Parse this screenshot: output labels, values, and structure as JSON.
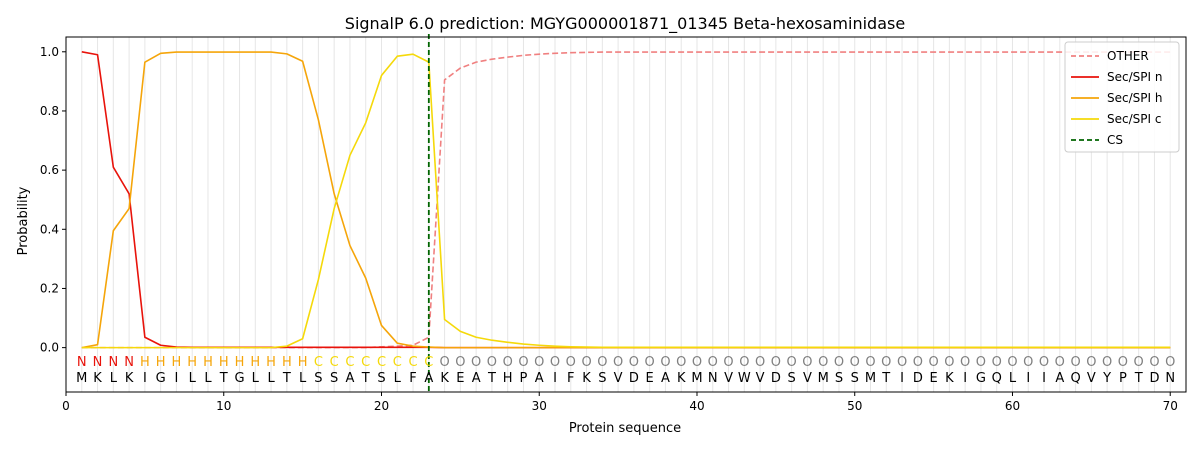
{
  "chart_data": {
    "type": "line",
    "title": "SignalP 6.0 prediction: MGYG000001871_01345 Beta-hexosaminidase",
    "xlabel": "Protein sequence",
    "ylabel": "Probability",
    "xlim": [
      0,
      71
    ],
    "ylim": [
      -0.15,
      1.05
    ],
    "x_ticks": [
      0,
      10,
      20,
      30,
      40,
      50,
      60,
      70
    ],
    "y_ticks": [
      0.0,
      0.2,
      0.4,
      0.6,
      0.8,
      1.0
    ],
    "x_tick_labels": [
      "0",
      "10",
      "20",
      "30",
      "40",
      "50",
      "60",
      "70"
    ],
    "y_tick_labels": [
      "0.0",
      "0.2",
      "0.4",
      "0.6",
      "0.8",
      "1.0"
    ],
    "grid": "vertical lines at each residue",
    "legend_position": "top-right",
    "sequence": [
      "M",
      "K",
      "L",
      "K",
      "I",
      "G",
      "I",
      "L",
      "L",
      "T",
      "G",
      "L",
      "L",
      "T",
      "L",
      "S",
      "S",
      "A",
      "T",
      "S",
      "L",
      "F",
      "A",
      "K",
      "E",
      "A",
      "T",
      "H",
      "P",
      "A",
      "I",
      "F",
      "K",
      "S",
      "V",
      "D",
      "E",
      "A",
      "K",
      "M",
      "N",
      "V",
      "W",
      "V",
      "D",
      "S",
      "V",
      "M",
      "S",
      "S",
      "M",
      "T",
      "I",
      "D",
      "E",
      "K",
      "I",
      "G",
      "Q",
      "L",
      "I",
      "I",
      "A",
      "Q",
      "V",
      "Y",
      "P",
      "T",
      "D",
      "N"
    ],
    "labels": [
      "N",
      "N",
      "N",
      "N",
      "H",
      "H",
      "H",
      "H",
      "H",
      "H",
      "H",
      "H",
      "H",
      "H",
      "H",
      "C",
      "C",
      "C",
      "C",
      "C",
      "C",
      "C",
      "C",
      "O",
      "O",
      "O",
      "O",
      "O",
      "O",
      "O",
      "O",
      "O",
      "O",
      "O",
      "O",
      "O",
      "O",
      "O",
      "O",
      "O",
      "O",
      "O",
      "O",
      "O",
      "O",
      "O",
      "O",
      "O",
      "O",
      "O",
      "O",
      "O",
      "O",
      "O",
      "O",
      "O",
      "O",
      "O",
      "O",
      "O",
      "O",
      "O",
      "O",
      "O",
      "O",
      "O",
      "O",
      "O",
      "O",
      "O"
    ],
    "label_colors": {
      "N": "#e8130b",
      "H": "#f5a50a",
      "C": "#f5d90a",
      "O": "#808080"
    },
    "cs_position": 23,
    "series": [
      {
        "name": "OTHER",
        "color": "#f08080",
        "dash": "dashed",
        "values": [
          0.0,
          0.0,
          0.0,
          0.0,
          0.0,
          0.0,
          0.0,
          0.0,
          0.0,
          0.0,
          0.0,
          0.0,
          0.0,
          0.0,
          0.0,
          0.0,
          0.0,
          0.0,
          0.0,
          0.003,
          0.005,
          0.008,
          0.035,
          0.905,
          0.945,
          0.965,
          0.975,
          0.982,
          0.988,
          0.992,
          0.995,
          0.997,
          0.998,
          0.999,
          0.999,
          0.999,
          0.999,
          0.999,
          0.999,
          0.999,
          0.999,
          0.999,
          0.999,
          0.999,
          0.999,
          0.999,
          0.999,
          0.999,
          0.999,
          0.999,
          0.999,
          0.999,
          0.999,
          0.999,
          0.999,
          0.999,
          0.999,
          0.999,
          0.999,
          0.999,
          0.999,
          0.999,
          0.999,
          0.999,
          0.999,
          0.999,
          0.999,
          0.999,
          0.999,
          0.999
        ]
      },
      {
        "name": "Sec/SPI n",
        "color": "#e8130b",
        "dash": "solid",
        "values": [
          1.0,
          0.99,
          0.61,
          0.52,
          0.035,
          0.008,
          0.002,
          0.001,
          0.001,
          0.001,
          0.001,
          0.001,
          0.001,
          0.001,
          0.001,
          0.001,
          0.001,
          0.001,
          0.001,
          0.001,
          0.001,
          0.001,
          0.001,
          0.0,
          0.0,
          0.0,
          0.0,
          0.0,
          0.0,
          0.0,
          0.0,
          0.0,
          0.0,
          0.0,
          0.0,
          0.0,
          0.0,
          0.0,
          0.0,
          0.0,
          0.0,
          0.0,
          0.0,
          0.0,
          0.0,
          0.0,
          0.0,
          0.0,
          0.0,
          0.0,
          0.0,
          0.0,
          0.0,
          0.0,
          0.0,
          0.0,
          0.0,
          0.0,
          0.0,
          0.0,
          0.0,
          0.0,
          0.0,
          0.0,
          0.0,
          0.0,
          0.0,
          0.0,
          0.0,
          0.0
        ]
      },
      {
        "name": "Sec/SPI h",
        "color": "#f5a50a",
        "dash": "solid",
        "values": [
          0.0,
          0.01,
          0.395,
          0.47,
          0.965,
          0.995,
          0.999,
          0.999,
          0.999,
          0.999,
          0.999,
          0.999,
          0.999,
          0.993,
          0.968,
          0.77,
          0.52,
          0.345,
          0.235,
          0.075,
          0.015,
          0.005,
          0.002,
          0.0,
          0.0,
          0.0,
          0.0,
          0.0,
          0.0,
          0.0,
          0.0,
          0.0,
          0.0,
          0.0,
          0.0,
          0.0,
          0.0,
          0.0,
          0.0,
          0.0,
          0.0,
          0.0,
          0.0,
          0.0,
          0.0,
          0.0,
          0.0,
          0.0,
          0.0,
          0.0,
          0.0,
          0.0,
          0.0,
          0.0,
          0.0,
          0.0,
          0.0,
          0.0,
          0.0,
          0.0,
          0.0,
          0.0,
          0.0,
          0.0,
          0.0,
          0.0,
          0.0,
          0.0,
          0.0,
          0.0
        ]
      },
      {
        "name": "Sec/SPI c",
        "color": "#f5d90a",
        "dash": "solid",
        "values": [
          0.0,
          0.0,
          0.0,
          0.0,
          0.0,
          0.0,
          0.0,
          0.0,
          0.0,
          0.0,
          0.0,
          0.0,
          0.0,
          0.005,
          0.03,
          0.23,
          0.47,
          0.65,
          0.76,
          0.92,
          0.985,
          0.992,
          0.965,
          0.095,
          0.055,
          0.035,
          0.025,
          0.018,
          0.012,
          0.008,
          0.005,
          0.003,
          0.002,
          0.001,
          0.001,
          0.001,
          0.001,
          0.001,
          0.001,
          0.001,
          0.001,
          0.001,
          0.001,
          0.001,
          0.001,
          0.001,
          0.001,
          0.001,
          0.001,
          0.001,
          0.001,
          0.001,
          0.001,
          0.001,
          0.001,
          0.001,
          0.001,
          0.001,
          0.001,
          0.001,
          0.001,
          0.001,
          0.001,
          0.001,
          0.001,
          0.001,
          0.001,
          0.001,
          0.001,
          0.001
        ]
      }
    ],
    "legend": [
      {
        "label": "OTHER",
        "color": "#f08080",
        "dash": "dashed"
      },
      {
        "label": "Sec/SPI n",
        "color": "#e8130b",
        "dash": "solid"
      },
      {
        "label": "Sec/SPI h",
        "color": "#f5a50a",
        "dash": "solid"
      },
      {
        "label": "Sec/SPI c",
        "color": "#f5d90a",
        "dash": "solid"
      },
      {
        "label": "CS",
        "color": "#006400",
        "dash": "dashed"
      }
    ]
  }
}
